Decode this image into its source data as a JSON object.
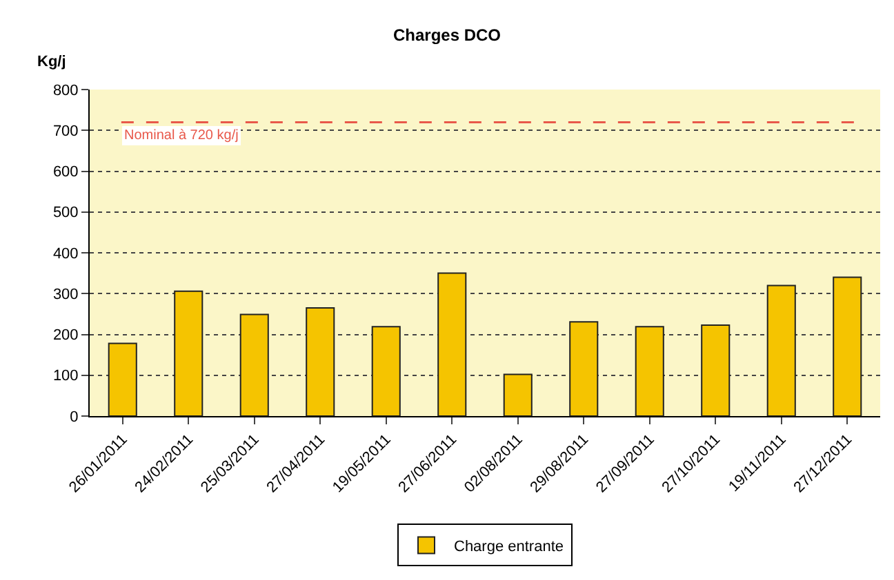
{
  "chart_data": {
    "type": "bar",
    "title": "Charges DCO",
    "ylabel": "Kg/j",
    "categories": [
      "26/01/2011",
      "24/02/2011",
      "25/03/2011",
      "27/04/2011",
      "19/05/2011",
      "27/06/2011",
      "02/08/2011",
      "29/08/2011",
      "27/09/2011",
      "27/10/2011",
      "19/11/2011",
      "27/12/2011"
    ],
    "series": [
      {
        "name": "Charge entrante",
        "color": "#f5c400",
        "values": [
          178,
          306,
          249,
          265,
          219,
          350,
          102,
          231,
          219,
          223,
          320,
          340
        ]
      }
    ],
    "ylim": [
      0,
      800
    ],
    "yticks": [
      0,
      100,
      200,
      300,
      400,
      500,
      600,
      700,
      800
    ],
    "grid": "y",
    "legend": "bottom",
    "ref_lines": [
      {
        "axis": "y",
        "value": 720,
        "label": "Nominal à 720 kg/j",
        "color": "#e8584a",
        "line_style": "dashed"
      }
    ]
  }
}
